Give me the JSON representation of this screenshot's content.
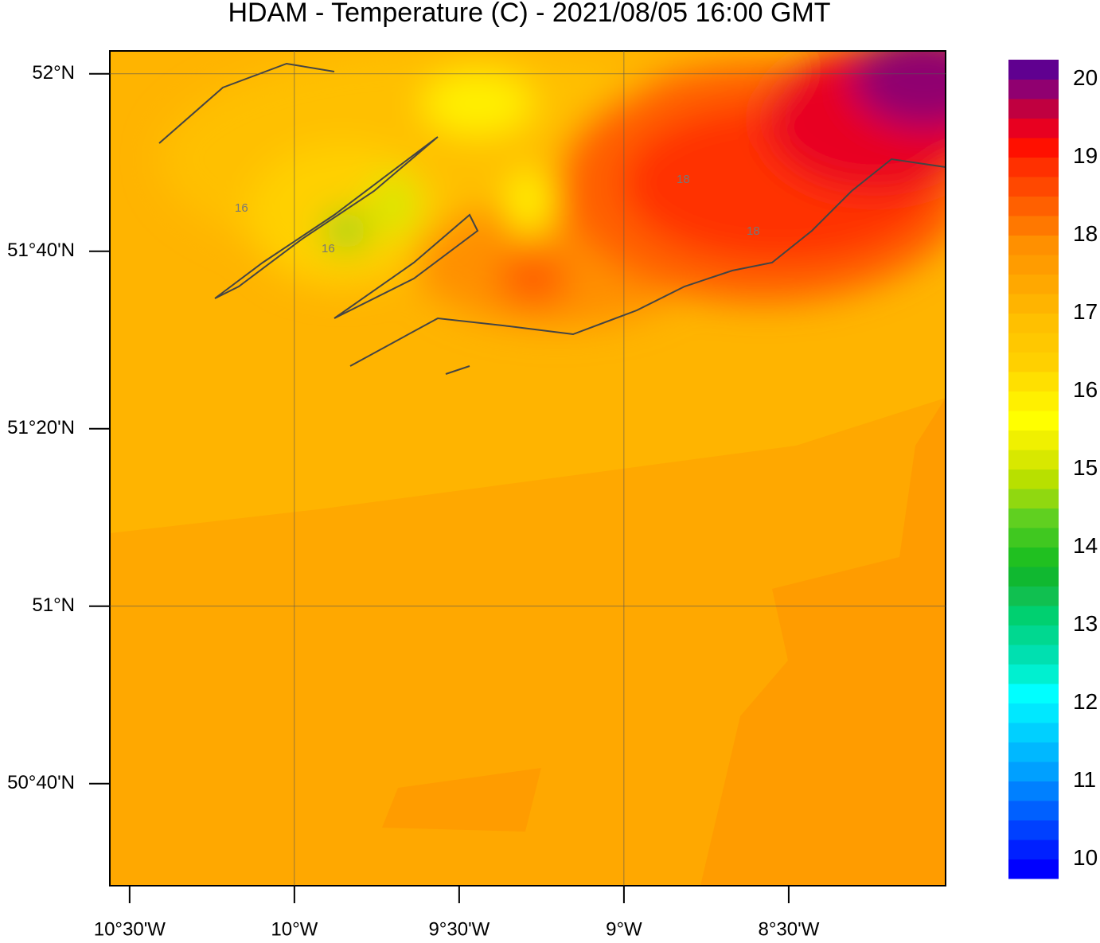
{
  "title": "HDAM - Temperature (C)  -  2021/08/05  16:00 GMT",
  "map": {
    "xlim": [
      -10.56,
      -8.024
    ],
    "ylim": [
      50.475,
      52.043
    ],
    "xticks": [
      {
        "value": -10.5,
        "label": "10°30'W"
      },
      {
        "value": -10,
        "label": "10°W"
      },
      {
        "value": -9.5,
        "label": "9°30'W"
      },
      {
        "value": -9,
        "label": "9°W"
      },
      {
        "value": -8.5,
        "label": "8°30'W"
      }
    ],
    "yticks": [
      {
        "value": 52,
        "label": "52°N"
      },
      {
        "value": 51.6667,
        "label": "51°40'N"
      },
      {
        "value": 51.3333,
        "label": "51°20'N"
      },
      {
        "value": 51,
        "label": "51°N"
      },
      {
        "value": 50.6667,
        "label": "50°40'N"
      }
    ],
    "grid": true,
    "contour_labels": [
      "16",
      "16",
      "18",
      "18"
    ]
  },
  "colorbar": {
    "range": [
      9.75,
      20.25
    ],
    "ticks": [
      10,
      11,
      12,
      13,
      14,
      15,
      16,
      17,
      18,
      19,
      20
    ],
    "colors": [
      "#0000ff",
      "#0020ff",
      "#0040ff",
      "#0060ff",
      "#0080ff",
      "#00a0ff",
      "#00b8ff",
      "#00d0ff",
      "#00e8ff",
      "#00ffff",
      "#00f0d0",
      "#00e0b0",
      "#00d890",
      "#00d070",
      "#10c050",
      "#10b830",
      "#20c020",
      "#40c820",
      "#60d020",
      "#90d810",
      "#b8e000",
      "#d8e800",
      "#f0f000",
      "#ffff00",
      "#fff000",
      "#ffe000",
      "#ffd000",
      "#ffc800",
      "#ffc000",
      "#ffb400",
      "#ffa800",
      "#ff9c00",
      "#ff9000",
      "#ff7800",
      "#ff6000",
      "#ff4800",
      "#ff3000",
      "#ff1000",
      "#e80020",
      "#c00040",
      "#900070",
      "#600090"
    ]
  }
}
